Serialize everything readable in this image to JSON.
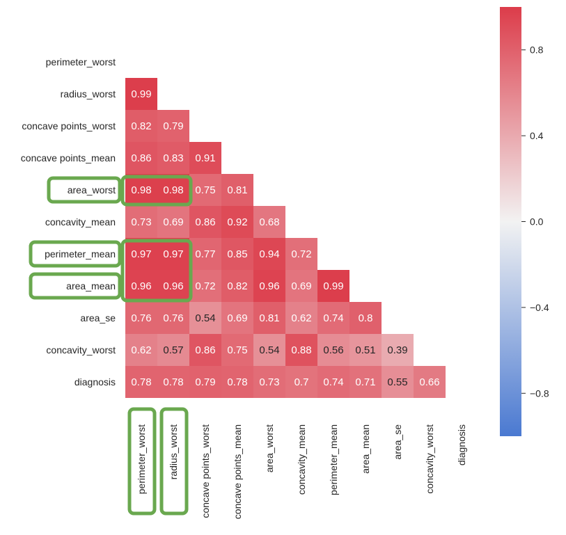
{
  "chart_data": {
    "type": "heatmap",
    "title": "",
    "xlabel": "",
    "ylabel": "",
    "variables": [
      "perimeter_worst",
      "radius_worst",
      "concave points_worst",
      "concave points_mean",
      "area_worst",
      "concavity_mean",
      "perimeter_mean",
      "area_mean",
      "area_se",
      "concavity_worst",
      "diagnosis"
    ],
    "matrix_lower": [
      [],
      [
        0.99
      ],
      [
        0.82,
        0.79
      ],
      [
        0.86,
        0.83,
        0.91
      ],
      [
        0.98,
        0.98,
        0.75,
        0.81
      ],
      [
        0.73,
        0.69,
        0.86,
        0.92,
        0.68
      ],
      [
        0.97,
        0.97,
        0.77,
        0.85,
        0.94,
        0.72
      ],
      [
        0.96,
        0.96,
        0.72,
        0.82,
        0.96,
        0.69,
        0.99
      ],
      [
        0.76,
        0.76,
        0.54,
        0.69,
        0.81,
        0.62,
        0.74,
        0.8
      ],
      [
        0.62,
        0.57,
        0.86,
        0.75,
        0.54,
        0.88,
        0.56,
        0.51,
        0.39
      ],
      [
        0.78,
        0.78,
        0.79,
        0.78,
        0.73,
        0.7,
        0.74,
        0.71,
        0.55,
        0.66
      ]
    ],
    "value_labels": [
      [],
      [
        "0.99"
      ],
      [
        "0.82",
        "0.79"
      ],
      [
        "0.86",
        "0.83",
        "0.91"
      ],
      [
        "0.98",
        "0.98",
        "0.75",
        "0.81"
      ],
      [
        "0.73",
        "0.69",
        "0.86",
        "0.92",
        "0.68"
      ],
      [
        "0.97",
        "0.97",
        "0.77",
        "0.85",
        "0.94",
        "0.72"
      ],
      [
        "0.96",
        "0.96",
        "0.72",
        "0.82",
        "0.96",
        "0.69",
        "0.99"
      ],
      [
        "0.76",
        "0.76",
        "0.54",
        "0.69",
        "0.81",
        "0.62",
        "0.74",
        "0.8"
      ],
      [
        "0.62",
        "0.57",
        "0.86",
        "0.75",
        "0.54",
        "0.88",
        "0.56",
        "0.51",
        "0.39"
      ],
      [
        "0.78",
        "0.78",
        "0.79",
        "0.78",
        "0.73",
        "0.7",
        "0.74",
        "0.71",
        "0.55",
        "0.66"
      ]
    ],
    "mask": "upper-triangle-including-diagonal",
    "colormap": "diverging blue-white-red",
    "colors": {
      "low": "#4a79d1",
      "mid": "#f2f2f2",
      "high": "#dc3c4a"
    },
    "vmin": -1,
    "vmax": 1,
    "colorbar": {
      "ticks": [
        0.8,
        0.4,
        0.0,
        -0.4,
        -0.8
      ],
      "tick_labels": [
        "0.8",
        "0.4",
        "0.0",
        "−0.4",
        "−0.8"
      ],
      "placement": "right"
    },
    "highlights": {
      "color": "#6aa84f",
      "row_labels": [
        "area_worst",
        "perimeter_mean",
        "area_mean"
      ],
      "col_labels": [
        "perimeter_worst",
        "radius_worst"
      ],
      "cell_blocks": [
        {
          "rows": [
            "area_worst"
          ],
          "cols": [
            "perimeter_worst",
            "radius_worst"
          ]
        },
        {
          "rows": [
            "perimeter_mean",
            "area_mean"
          ],
          "cols": [
            "perimeter_worst",
            "radius_worst"
          ]
        }
      ]
    }
  }
}
